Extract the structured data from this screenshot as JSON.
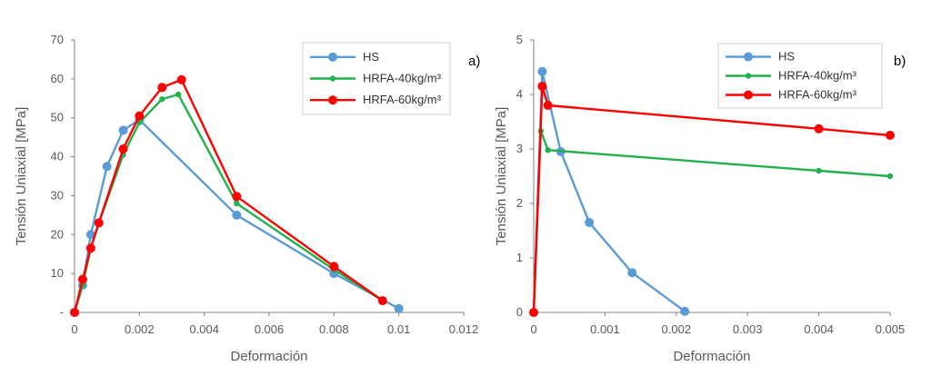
{
  "chart_data": [
    {
      "type": "line",
      "panel_tag": "a)",
      "xlabel": "Deformación",
      "ylabel": "Tensión Uniaxial [MPa]",
      "xlim": [
        0,
        0.012
      ],
      "ylim": [
        0,
        70
      ],
      "xticks": [
        "0",
        "0.002",
        "0.004",
        "0.006",
        "0.008",
        "0.01",
        "0.012"
      ],
      "yticks": [
        "-",
        "10",
        "20",
        "30",
        "40",
        "50",
        "60",
        "70"
      ],
      "legend_position": "top-right",
      "series": [
        {
          "name": "HS",
          "color": "#5B9BD5",
          "marker": "large",
          "points": [
            [
              0,
              0
            ],
            [
              0.00025,
              7
            ],
            [
              0.0005,
              20
            ],
            [
              0.001,
              37.5
            ],
            [
              0.0015,
              46.8
            ],
            [
              0.002,
              49.5
            ],
            [
              0.005,
              25
            ],
            [
              0.008,
              10
            ],
            [
              0.01,
              1
            ]
          ]
        },
        {
          "name": "HRFA-40kg/m³",
          "color": "#22B14C",
          "marker": "small",
          "points": [
            [
              0,
              0
            ],
            [
              0.00025,
              7
            ],
            [
              0.0005,
              16.5
            ],
            [
              0.00075,
              23
            ],
            [
              0.0015,
              40.5
            ],
            [
              0.002,
              48.8
            ],
            [
              0.0027,
              54.8
            ],
            [
              0.0032,
              56
            ],
            [
              0.005,
              28
            ],
            [
              0.008,
              11
            ],
            [
              0.0095,
              3
            ]
          ]
        },
        {
          "name": "HRFA-60kg/m³",
          "color": "#FF0000",
          "marker": "medium",
          "points": [
            [
              0,
              0
            ],
            [
              0.00025,
              8.5
            ],
            [
              0.0005,
              16.5
            ],
            [
              0.00075,
              23
            ],
            [
              0.0015,
              42
            ],
            [
              0.002,
              50.5
            ],
            [
              0.0027,
              57.8
            ],
            [
              0.0033,
              59.8
            ],
            [
              0.005,
              29.8
            ],
            [
              0.008,
              11.8
            ],
            [
              0.0095,
              3
            ]
          ]
        }
      ]
    },
    {
      "type": "line",
      "panel_tag": "b)",
      "xlabel": "Deformación",
      "ylabel": "Tensión Uniaxial [MPa]",
      "xlim": [
        0,
        0.005
      ],
      "ylim": [
        0,
        5
      ],
      "xticks": [
        "0",
        "0.001",
        "0.002",
        "0.003",
        "0.004",
        "0.005"
      ],
      "yticks": [
        "0",
        "1",
        "2",
        "3",
        "4",
        "5"
      ],
      "legend_position": "top-right",
      "series": [
        {
          "name": "HS",
          "color": "#5B9BD5",
          "marker": "large",
          "points": [
            [
              0,
              0
            ],
            [
              0.00012,
              4.42
            ],
            [
              0.00038,
              2.95
            ],
            [
              0.00078,
              1.65
            ],
            [
              0.00138,
              0.73
            ],
            [
              0.00212,
              0.02
            ]
          ]
        },
        {
          "name": "HRFA-40kg/m³",
          "color": "#22B14C",
          "marker": "small",
          "points": [
            [
              0,
              0
            ],
            [
              0.0001,
              3.33
            ],
            [
              0.0002,
              2.98
            ],
            [
              0.004,
              2.6
            ],
            [
              0.005,
              2.5
            ]
          ]
        },
        {
          "name": "HRFA-60kg/m³",
          "color": "#FF0000",
          "marker": "medium",
          "points": [
            [
              0,
              0
            ],
            [
              0.00012,
              4.15
            ],
            [
              0.0002,
              3.8
            ],
            [
              0.004,
              3.37
            ],
            [
              0.005,
              3.25
            ]
          ]
        }
      ]
    }
  ]
}
